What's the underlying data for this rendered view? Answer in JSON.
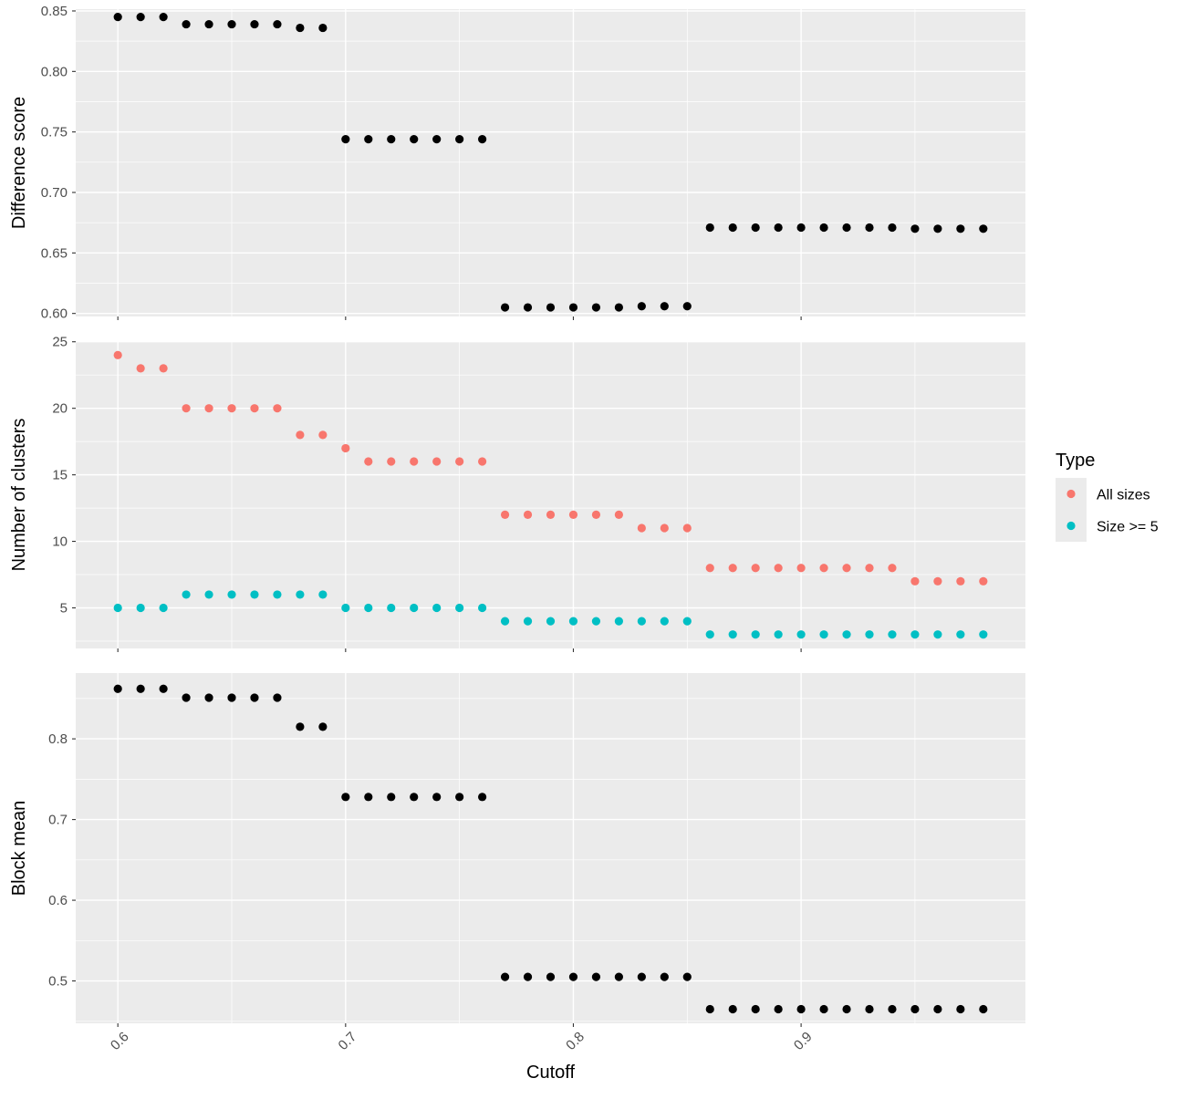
{
  "chart_data": {
    "type": "scatter",
    "x_shared": {
      "label": "Cutoff",
      "ticks": [
        0.6,
        0.7,
        0.8,
        0.9
      ],
      "tick_labels": [
        "0.6",
        "0.7",
        "0.8",
        "0.9"
      ],
      "xlim": [
        0.5815,
        0.9985
      ],
      "tick_label_rotation": -45
    },
    "x": [
      0.6,
      0.61,
      0.62,
      0.63,
      0.64,
      0.65,
      0.66,
      0.67,
      0.68,
      0.69,
      0.7,
      0.71,
      0.72,
      0.73,
      0.74,
      0.75,
      0.76,
      0.77,
      0.78,
      0.79,
      0.8,
      0.81,
      0.82,
      0.83,
      0.84,
      0.85,
      0.86,
      0.87,
      0.88,
      0.89,
      0.9,
      0.91,
      0.92,
      0.93,
      0.94,
      0.95,
      0.96,
      0.97,
      0.98
    ],
    "grid": true,
    "panels": [
      {
        "ylabel": "Difference score",
        "ylim": [
          0.5975,
          0.8515
        ],
        "yticks": [
          0.6,
          0.65,
          0.7,
          0.75,
          0.8,
          0.85
        ],
        "ytick_labels": [
          "0.60",
          "0.65",
          "0.70",
          "0.75",
          "0.80",
          "0.85"
        ],
        "series": [
          {
            "color": "#000000",
            "values": [
              0.845,
              0.845,
              0.845,
              0.839,
              0.839,
              0.839,
              0.839,
              0.839,
              0.836,
              0.836,
              0.744,
              0.744,
              0.744,
              0.744,
              0.744,
              0.744,
              0.744,
              0.605,
              0.605,
              0.605,
              0.605,
              0.605,
              0.605,
              0.606,
              0.606,
              0.606,
              0.671,
              0.671,
              0.671,
              0.671,
              0.671,
              0.671,
              0.671,
              0.671,
              0.671,
              0.67,
              0.67,
              0.67,
              0.67
            ]
          }
        ]
      },
      {
        "ylabel": "Number of clusters",
        "ylim": [
          1.95,
          25.05
        ],
        "yticks": [
          5,
          10,
          15,
          20,
          25
        ],
        "ytick_labels": [
          "5",
          "10",
          "15",
          "20",
          "25"
        ],
        "series": [
          {
            "name": "All sizes",
            "color": "#F8766D",
            "values": [
              24,
              23,
              23,
              20,
              20,
              20,
              20,
              20,
              18,
              18,
              17,
              16,
              16,
              16,
              16,
              16,
              16,
              12,
              12,
              12,
              12,
              12,
              12,
              11,
              11,
              11,
              8,
              8,
              8,
              8,
              8,
              8,
              8,
              8,
              8,
              7,
              7,
              7,
              7
            ]
          },
          {
            "name": "Size >= 5",
            "color": "#00BFC4",
            "values": [
              5,
              5,
              5,
              6,
              6,
              6,
              6,
              6,
              6,
              6,
              5,
              5,
              5,
              5,
              5,
              5,
              5,
              4,
              4,
              4,
              4,
              4,
              4,
              4,
              4,
              4,
              3,
              3,
              3,
              3,
              3,
              3,
              3,
              3,
              3,
              3,
              3,
              3,
              3
            ]
          }
        ]
      },
      {
        "ylabel": "Block mean",
        "ylim": [
          0.4475,
          0.8815
        ],
        "yticks": [
          0.5,
          0.6,
          0.7,
          0.8
        ],
        "ytick_labels": [
          "0.5",
          "0.6",
          "0.7",
          "0.8"
        ],
        "series": [
          {
            "color": "#000000",
            "values": [
              0.862,
              0.862,
              0.862,
              0.851,
              0.851,
              0.851,
              0.851,
              0.851,
              0.815,
              0.815,
              0.728,
              0.728,
              0.728,
              0.728,
              0.728,
              0.728,
              0.728,
              0.505,
              0.505,
              0.505,
              0.505,
              0.505,
              0.505,
              0.505,
              0.505,
              0.505,
              0.465,
              0.465,
              0.465,
              0.465,
              0.465,
              0.465,
              0.465,
              0.465,
              0.465,
              0.465,
              0.465,
              0.465,
              0.465
            ]
          }
        ]
      }
    ],
    "legend": {
      "title": "Type",
      "position": "right",
      "entries": [
        {
          "label": "All sizes",
          "color": "#F8766D"
        },
        {
          "label": "Size >= 5",
          "color": "#00BFC4"
        }
      ]
    },
    "panel_background": "#EBEBEB",
    "grid_color": "#FFFFFF"
  }
}
